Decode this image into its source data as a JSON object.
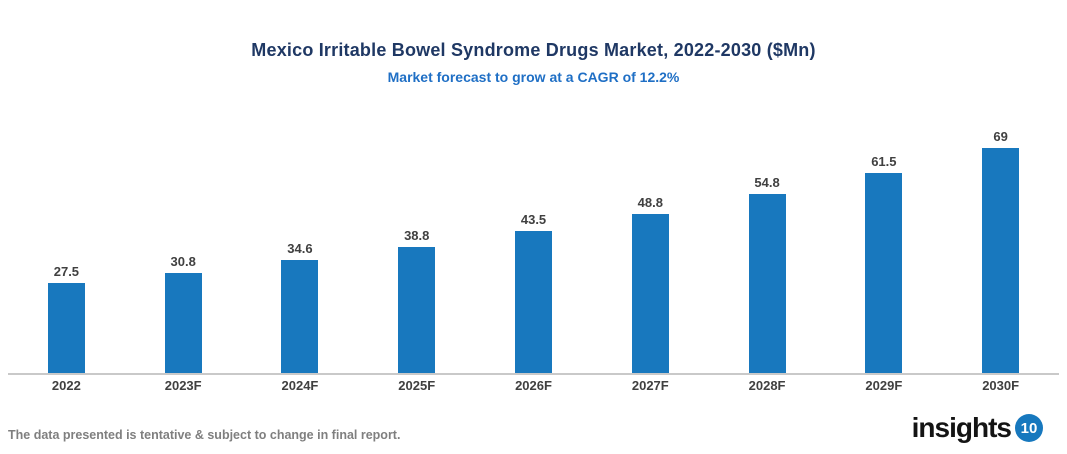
{
  "chart": {
    "title": "Mexico Irritable Bowel Syndrome Drugs Market, 2022-2030 ($Mn)",
    "subtitle": "Market forecast to grow at a CAGR of 12.2%"
  },
  "chart_data": {
    "type": "bar",
    "categories": [
      "2022",
      "2023F",
      "2024F",
      "2025F",
      "2026F",
      "2027F",
      "2028F",
      "2029F",
      "2030F"
    ],
    "values": [
      27.5,
      30.8,
      34.6,
      38.8,
      43.5,
      48.8,
      54.8,
      61.5,
      69
    ],
    "data_labels": [
      "27.5",
      "30.8",
      "34.6",
      "38.8",
      "43.5",
      "48.8",
      "54.8",
      "61.5",
      "69"
    ],
    "title": "Mexico Irritable Bowel Syndrome Drugs Market, 2022-2030 ($Mn)",
    "subtitle": "Market forecast to grow at a CAGR of 12.2%",
    "xlabel": "",
    "ylabel": "",
    "ylim": [
      0,
      75
    ],
    "grid": false,
    "legend": false,
    "bar_color": "#1878be"
  },
  "colors": {
    "title_text": "#1f3864",
    "subtitle_text": "#1f6fc5",
    "bar": "#1878be",
    "data_label": "#404040",
    "axis_line": "#c9c9c9",
    "footnote_text": "#7f7f7f",
    "logo_badge_bg": "#1778be"
  },
  "footer": {
    "note": "The data presented is tentative & subject to change in final report."
  },
  "logo": {
    "text": "insights",
    "badge": "10"
  }
}
